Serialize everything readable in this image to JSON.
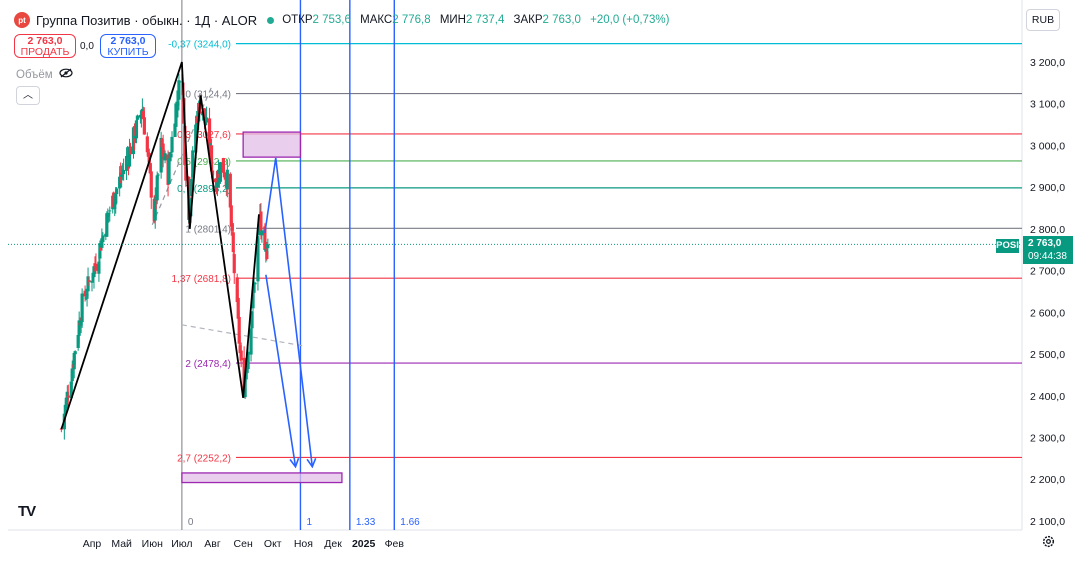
{
  "header": {
    "logo_text": "pt",
    "title": "Группа Позитив · обыкн. · 1Д · ALOR",
    "ohlc": [
      {
        "label": "ОТКР",
        "value": "2 753,6"
      },
      {
        "label": "МАКС",
        "value": "2 776,8"
      },
      {
        "label": "МИН",
        "value": "2 737,4"
      },
      {
        "label": "ЗАКР",
        "value": "2 763,0"
      },
      {
        "label": "",
        "value": "+20,0 (+0,73%)"
      }
    ]
  },
  "trade": {
    "sell_price": "2 763,0",
    "sell_label": "ПРОДАТЬ",
    "spread": "0,0",
    "buy_price": "2 763,0",
    "buy_label": "КУПИТЬ"
  },
  "volume": {
    "label": "Объём"
  },
  "currency": {
    "label": "RUB"
  },
  "price_tag": {
    "ticker": "POSI",
    "price": "2 763,0",
    "time": "09:44:38"
  },
  "watermark": {
    "text": "TV"
  },
  "colors": {
    "up": "#089981",
    "down": "#f23645",
    "fib_red": "#f23645",
    "fib_cyan": "#00bcd4",
    "fib_grey": "#787b86",
    "fib_green": "#4caf50",
    "fib_teal": "#089981",
    "fib_purple": "#9c27b0",
    "box_fill": "#e1bee7",
    "blue_line": "#2962ff"
  },
  "chart_data": {
    "type": "candlestick",
    "title": "Группа Позитив · обыкн. · 1Д · ALOR",
    "y_axis": {
      "range": [
        2070,
        3290
      ],
      "ticks": [
        3200,
        3100,
        3000,
        2900,
        2800,
        2700,
        2600,
        2500,
        2400,
        2300,
        2200,
        2100
      ],
      "tick_labels": [
        "3 200,0",
        "3 100,0",
        "3 000,0",
        "2 900,0",
        "2 800,0",
        "2 700,0",
        "2 600,0",
        "2 500,0",
        "2 400,0",
        "2 300,0",
        "2 200,0",
        "2 100,0"
      ]
    },
    "x_axis": {
      "range": [
        "2024-03-01",
        "2025-02-20"
      ],
      "ticks": [
        {
          "date": "2024-04-01",
          "label": "Апр"
        },
        {
          "date": "2024-05-01",
          "label": "Май"
        },
        {
          "date": "2024-06-01",
          "label": "Июн"
        },
        {
          "date": "2024-07-01",
          "label": "Июл"
        },
        {
          "date": "2024-08-01",
          "label": "Авг"
        },
        {
          "date": "2024-09-01",
          "label": "Сен"
        },
        {
          "date": "2024-10-01",
          "label": "Окт"
        },
        {
          "date": "2024-11-01",
          "label": "Ноя"
        },
        {
          "date": "2024-12-01",
          "label": "Дек"
        },
        {
          "date": "2025-01-01",
          "label": "2025"
        },
        {
          "date": "2025-02-01",
          "label": "Фев"
        }
      ]
    },
    "anchors": [
      {
        "date": "2024-03-01",
        "close": 2320
      },
      {
        "date": "2024-03-10",
        "close": 2440
      },
      {
        "date": "2024-03-22",
        "close": 2620
      },
      {
        "date": "2024-04-05",
        "close": 2720
      },
      {
        "date": "2024-04-18",
        "close": 2840
      },
      {
        "date": "2024-05-01",
        "close": 2930
      },
      {
        "date": "2024-05-12",
        "close": 3010
      },
      {
        "date": "2024-05-22",
        "close": 3090
      },
      {
        "date": "2024-05-28",
        "close": 2960
      },
      {
        "date": "2024-06-03",
        "close": 2830
      },
      {
        "date": "2024-06-10",
        "close": 3000
      },
      {
        "date": "2024-06-17",
        "close": 2930
      },
      {
        "date": "2024-06-24",
        "close": 3080
      },
      {
        "date": "2024-07-01",
        "close": 3180
      },
      {
        "date": "2024-07-04",
        "close": 2980
      },
      {
        "date": "2024-07-08",
        "close": 2820
      },
      {
        "date": "2024-07-14",
        "close": 3040
      },
      {
        "date": "2024-07-20",
        "close": 3110
      },
      {
        "date": "2024-07-27",
        "close": 3030
      },
      {
        "date": "2024-08-03",
        "close": 2900
      },
      {
        "date": "2024-08-10",
        "close": 2960
      },
      {
        "date": "2024-08-17",
        "close": 2910
      },
      {
        "date": "2024-08-23",
        "close": 2700
      },
      {
        "date": "2024-09-01",
        "close": 2400
      },
      {
        "date": "2024-09-08",
        "close": 2560
      },
      {
        "date": "2024-09-14",
        "close": 2710
      },
      {
        "date": "2024-09-18",
        "close": 2830
      },
      {
        "date": "2024-09-22",
        "close": 2710
      },
      {
        "date": "2024-09-26",
        "close": 2763
      }
    ],
    "last_price": 2763.0,
    "fib_levels": [
      {
        "ratio": "-0,37",
        "price": 3244.0,
        "label": "-0,37 (3244,0)",
        "color": "#00bcd4"
      },
      {
        "ratio": "0",
        "price": 3124.4,
        "label": "0 (3124,4)",
        "color": "#787b86"
      },
      {
        "ratio": "0,3",
        "price": 3027.6,
        "label": "0,3 (3027,6)",
        "color": "#f23645"
      },
      {
        "ratio": "0,5",
        "price": 2962.8,
        "label": "0,5 (2962,8)",
        "color": "#4caf50"
      },
      {
        "ratio": "0,7",
        "price": 2898.2,
        "label": "0,7 (2898,2)",
        "color": "#089981"
      },
      {
        "ratio": "1",
        "price": 2801.4,
        "label": "1 (2801,4)",
        "color": "#787b86"
      },
      {
        "ratio": "1,37",
        "price": 2681.8,
        "label": "1,37 (2681,8)",
        "color": "#f23645"
      },
      {
        "ratio": "2",
        "price": 2478.4,
        "label": "2 (2478,4)",
        "color": "#9c27b0"
      },
      {
        "ratio": "2,7",
        "price": 2252.2,
        "label": "2,7 (2252,2)",
        "color": "#f23645"
      }
    ],
    "fib_time": [
      {
        "label": "0",
        "date": "2024-07-01",
        "color": "#787b86"
      },
      {
        "label": "1",
        "date": "2024-10-29",
        "color": "#2962ff"
      },
      {
        "label": "1.33",
        "date": "2024-12-18",
        "color": "#2962ff"
      },
      {
        "label": "1.66",
        "date": "2025-02-01",
        "color": "#2962ff"
      }
    ],
    "zigzag": [
      {
        "date": "2024-03-01",
        "price": 2320
      },
      {
        "date": "2024-07-01",
        "price": 3200
      },
      {
        "date": "2024-07-09",
        "price": 2800
      },
      {
        "date": "2024-07-20",
        "price": 3120
      },
      {
        "date": "2024-09-01",
        "price": 2395
      },
      {
        "date": "2024-09-17",
        "price": 2835
      }
    ],
    "channel_dashed": [
      {
        "from": {
          "date": "2024-06-01",
          "price": 2810
        },
        "to": {
          "date": "2024-07-31",
          "price": 3140
        },
        "color": "#9598a1"
      },
      {
        "from": {
          "date": "2024-07-01",
          "price": 2570
        },
        "to": {
          "date": "2024-10-31",
          "price": 2520
        },
        "color": "#b2b5be"
      }
    ],
    "boxes": [
      {
        "from": {
          "date": "2024-09-01",
          "price": 3032
        },
        "to": {
          "date": "2024-10-29",
          "price": 2972
        }
      },
      {
        "from": {
          "date": "2024-07-01",
          "price": 2215
        },
        "to": {
          "date": "2024-12-10",
          "price": 2192
        }
      }
    ],
    "projection_paths": [
      {
        "points": [
          {
            "date": "2024-09-23",
            "price": 2790
          },
          {
            "date": "2024-10-04",
            "price": 2970
          },
          {
            "date": "2024-11-10",
            "price": 2230
          }
        ],
        "arrow": true
      },
      {
        "points": [
          {
            "date": "2024-09-24",
            "price": 2690
          },
          {
            "date": "2024-10-24",
            "price": 2230
          }
        ],
        "arrow": true
      }
    ]
  }
}
